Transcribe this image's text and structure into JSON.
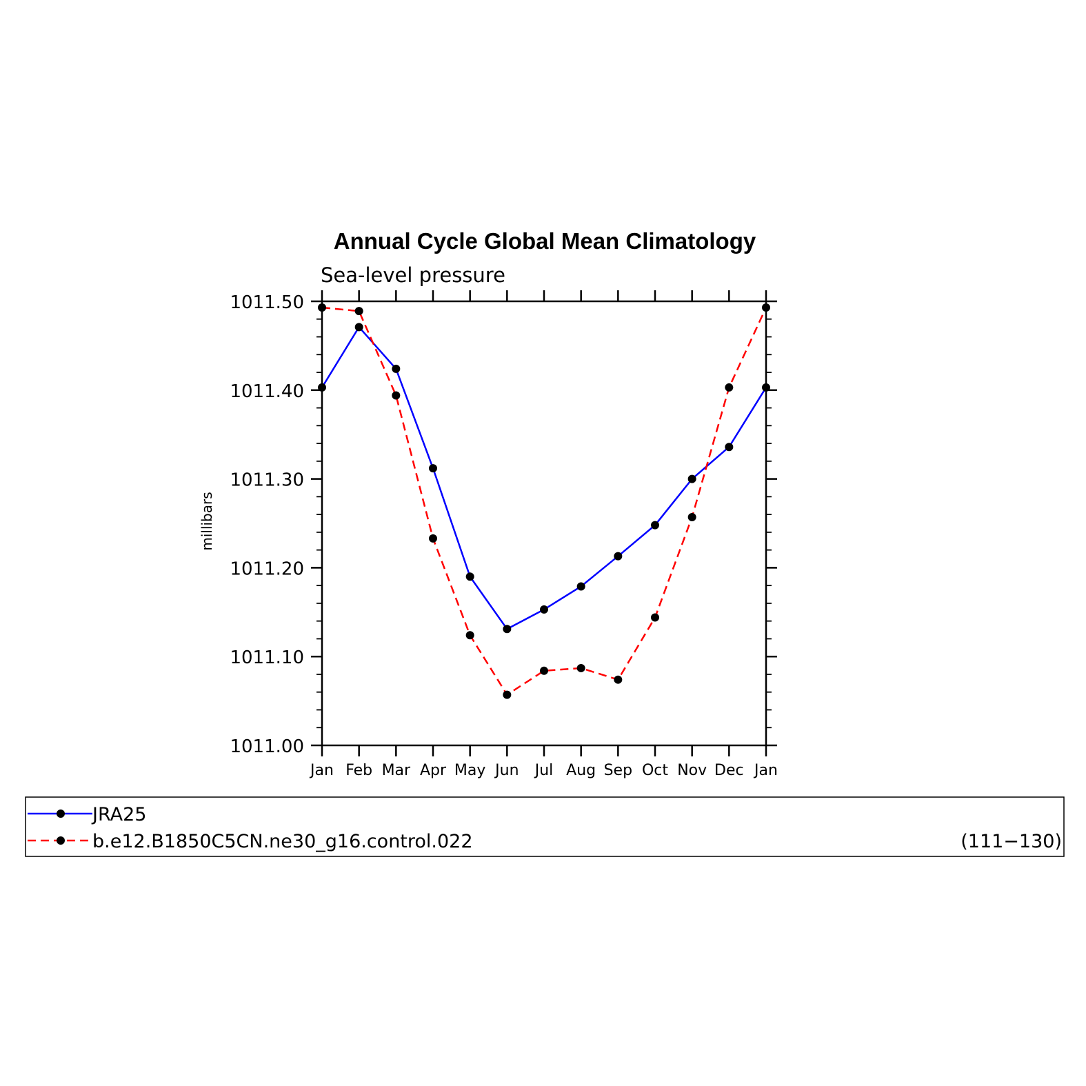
{
  "chart_data": {
    "type": "line",
    "title": "Annual Cycle Global Mean Climatology",
    "subtitle": "Sea-level pressure",
    "ylabel": "millibars",
    "xlabel": "",
    "categories": [
      "Jan",
      "Feb",
      "Mar",
      "Apr",
      "May",
      "Jun",
      "Jul",
      "Aug",
      "Sep",
      "Oct",
      "Nov",
      "Dec",
      "Jan"
    ],
    "ylim": [
      1011.0,
      1011.5
    ],
    "yticks": [
      "1011.00",
      "1011.10",
      "1011.20",
      "1011.30",
      "1011.40",
      "1011.50"
    ],
    "grid": false,
    "series": [
      {
        "name": "JRA25",
        "color": "#0000ff",
        "dash": "solid",
        "values": [
          1011.403,
          1011.471,
          1011.424,
          1011.312,
          1011.19,
          1011.131,
          1011.153,
          1011.179,
          1011.213,
          1011.248,
          1011.3,
          1011.336,
          1011.403
        ]
      },
      {
        "name": "b.e12.B1850C5CN.ne30_g16.control.022",
        "note": "(111−130)",
        "color": "#ff0000",
        "dash": "dashed",
        "values": [
          1011.493,
          1011.489,
          1011.394,
          1011.233,
          1011.124,
          1011.057,
          1011.084,
          1011.087,
          1011.074,
          1011.144,
          1011.257,
          1011.403,
          1011.493
        ]
      }
    ],
    "marker_color": "#000000"
  }
}
